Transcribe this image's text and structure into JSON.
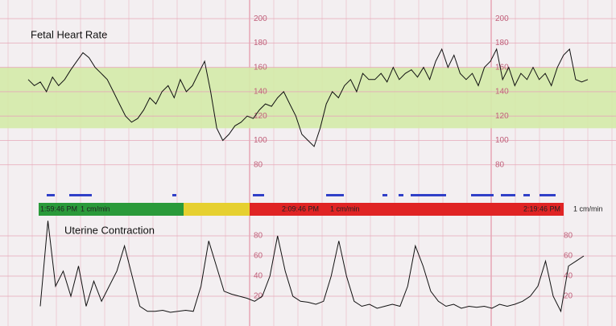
{
  "chart_data": [
    {
      "type": "line",
      "title": "Fetal Heart Rate",
      "color": "#111111",
      "ylim": [
        60,
        210
      ],
      "yticks": [
        80,
        100,
        120,
        140,
        160,
        180,
        200
      ],
      "band": {
        "from": 110,
        "to": 160,
        "color": "#d4eaa8"
      },
      "grid": true,
      "values": [
        150,
        145,
        148,
        140,
        152,
        145,
        150,
        158,
        165,
        172,
        168,
        160,
        155,
        150,
        140,
        130,
        120,
        115,
        118,
        125,
        135,
        130,
        140,
        145,
        135,
        150,
        140,
        145,
        155,
        165,
        140,
        110,
        100,
        105,
        112,
        115,
        120,
        118,
        125,
        130,
        128,
        135,
        140,
        130,
        120,
        105,
        100,
        95,
        110,
        130,
        140,
        135,
        145,
        150,
        140,
        155,
        150,
        150,
        155,
        148,
        160,
        150,
        155,
        158,
        152,
        160,
        150,
        165,
        175,
        160,
        170,
        155,
        150,
        155,
        145,
        160,
        165,
        175,
        150,
        160,
        145,
        155,
        150,
        160,
        150,
        155,
        145,
        160,
        170,
        175,
        150,
        148,
        150
      ]
    },
    {
      "type": "line",
      "title": "Uterine Contraction",
      "color": "#111111",
      "ylim": [
        0,
        100
      ],
      "yticks": [
        20,
        40,
        60,
        80
      ],
      "grid": true,
      "values": [
        10,
        95,
        30,
        45,
        20,
        50,
        10,
        35,
        15,
        30,
        45,
        70,
        40,
        10,
        5,
        5,
        6,
        4,
        5,
        6,
        5,
        30,
        75,
        50,
        25,
        22,
        20,
        18,
        15,
        20,
        40,
        80,
        45,
        20,
        15,
        14,
        12,
        15,
        40,
        75,
        40,
        15,
        10,
        12,
        8,
        10,
        12,
        10,
        30,
        70,
        50,
        25,
        15,
        10,
        12,
        8,
        10,
        9,
        10,
        8,
        12,
        10,
        12,
        15,
        20,
        30,
        55,
        20,
        5,
        50,
        55,
        60
      ]
    }
  ],
  "status_bar": [
    "#2a9a3a",
    "#e6d030",
    "#e02424"
  ],
  "timestamps": [
    {
      "time": "1:59:46 PM",
      "speed": "1 cm/min"
    },
    {
      "time": "2:09:46 PM",
      "speed": "1 cm/min"
    },
    {
      "time": "2:19:46 PM",
      "speed": "1 cm/min"
    }
  ]
}
